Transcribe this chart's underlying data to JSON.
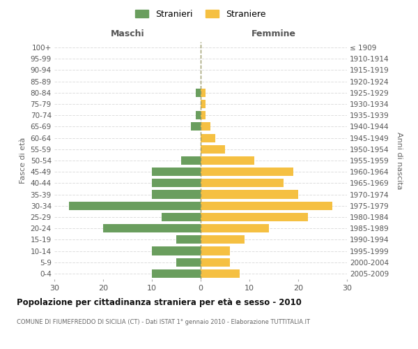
{
  "age_groups": [
    "0-4",
    "5-9",
    "10-14",
    "15-19",
    "20-24",
    "25-29",
    "30-34",
    "35-39",
    "40-44",
    "45-49",
    "50-54",
    "55-59",
    "60-64",
    "65-69",
    "70-74",
    "75-79",
    "80-84",
    "85-89",
    "90-94",
    "95-99",
    "100+"
  ],
  "birth_years": [
    "2005-2009",
    "2000-2004",
    "1995-1999",
    "1990-1994",
    "1985-1989",
    "1980-1984",
    "1975-1979",
    "1970-1974",
    "1965-1969",
    "1960-1964",
    "1955-1959",
    "1950-1954",
    "1945-1949",
    "1940-1944",
    "1935-1939",
    "1930-1934",
    "1925-1929",
    "1920-1924",
    "1915-1919",
    "1910-1914",
    "≤ 1909"
  ],
  "males": [
    10,
    5,
    10,
    5,
    20,
    8,
    27,
    10,
    10,
    10,
    4,
    0,
    0,
    2,
    1,
    0,
    1,
    0,
    0,
    0,
    0
  ],
  "females": [
    8,
    6,
    6,
    9,
    14,
    22,
    27,
    20,
    17,
    19,
    11,
    5,
    3,
    2,
    1,
    1,
    1,
    0,
    0,
    0,
    0
  ],
  "male_color": "#6a9e5e",
  "female_color": "#f5c042",
  "title": "Popolazione per cittadinanza straniera per età e sesso - 2010",
  "subtitle": "COMUNE DI FIUMEFREDDO DI SICILIA (CT) - Dati ISTAT 1° gennaio 2010 - Elaborazione TUTTITALIA.IT",
  "ylabel_left": "Fasce di età",
  "ylabel_right": "Anni di nascita",
  "xlabel_left": "Maschi",
  "xlabel_right": "Femmine",
  "legend_male": "Stranieri",
  "legend_female": "Straniere",
  "xlim": 30,
  "background_color": "#ffffff",
  "grid_color": "#dddddd"
}
